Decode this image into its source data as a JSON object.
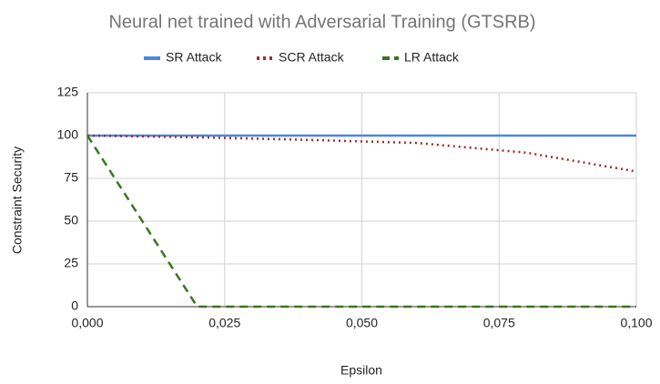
{
  "chart_data": {
    "type": "line",
    "title": "Neural net trained with Adversarial Training (GTSRB)",
    "x_label": "Epsilon",
    "y_label": "Constraint Security",
    "x": [
      0,
      0.02,
      0.04,
      0.06,
      0.08,
      0.1
    ],
    "series": [
      {
        "name": "SR Attack",
        "color": "#4a86e8",
        "dash": "solid",
        "values": [
          100,
          100,
          100,
          100,
          100,
          100
        ]
      },
      {
        "name": "SCR Attack",
        "color": "#a52a2a",
        "dash": "dotted",
        "values": [
          100,
          99,
          97.5,
          95.7,
          90,
          79
        ]
      },
      {
        "name": "LR Attack",
        "color": "#38761d",
        "dash": "dashed",
        "values": [
          100,
          0,
          0,
          0,
          0,
          0
        ]
      }
    ],
    "xlim": [
      0,
      0.1
    ],
    "xticks": [
      {
        "value": 0,
        "label": "0,000"
      },
      {
        "value": 0.025,
        "label": "0,025"
      },
      {
        "value": 0.05,
        "label": "0,050"
      },
      {
        "value": 0.075,
        "label": "0,075"
      },
      {
        "value": 0.1,
        "label": "0,100"
      }
    ],
    "ylim": [
      0,
      125
    ],
    "yticks": [
      0,
      25,
      50,
      75,
      100,
      125
    ],
    "grid": true,
    "legend": "top"
  }
}
